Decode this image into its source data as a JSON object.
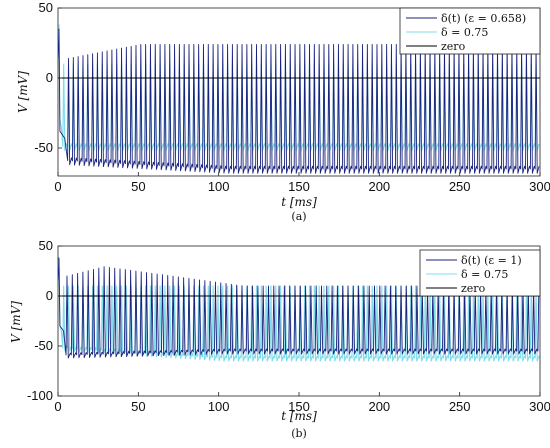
{
  "chart_data": [
    {
      "type": "line",
      "panel": "a",
      "caption": "(a)",
      "xlabel": "t [ms]",
      "ylabel": "V [mV]",
      "xlim": [
        0,
        300
      ],
      "ylim": [
        -70,
        50
      ],
      "xticks": [
        0,
        50,
        100,
        150,
        200,
        250,
        300
      ],
      "yticks": [
        -50,
        0,
        50
      ],
      "legend_position": "top-right",
      "series": [
        {
          "name": "δ(t) (ε = 0.658)",
          "color": "#1a237e",
          "spike_period_ms": 3.0,
          "spike_start_ms": 6,
          "trough_start": -62,
          "trough_end": -68,
          "peak_start": 14,
          "peak_plateau": 24,
          "initial_spike": 35,
          "initial_dip": -38
        },
        {
          "name": "δ = 0.75",
          "color": "#7fdcea",
          "spike_period_ms": 3.0,
          "spike_start_ms": 3,
          "trough_start": -52,
          "trough_end": -52,
          "peak_start": 10,
          "peak_plateau": 10,
          "initial_spike": 38,
          "initial_dip": -30
        },
        {
          "name": "zero",
          "color": "#000000",
          "constant": 0
        }
      ]
    },
    {
      "type": "line",
      "panel": "b",
      "caption": "(b)",
      "xlabel": "t [ms]",
      "ylabel": "V [mV]",
      "xlim": [
        0,
        300
      ],
      "ylim": [
        -100,
        50
      ],
      "xticks": [
        0,
        50,
        100,
        150,
        200,
        250,
        300
      ],
      "yticks": [
        -100,
        -50,
        0,
        50
      ],
      "legend_position": "top-right",
      "series": [
        {
          "name": "δ(t) (ε = 1)",
          "color": "#1a237e",
          "spike_period_ms": 3.3,
          "spike_start_ms": 5,
          "trough_start": -62,
          "trough_end": -58,
          "peak_start": 20,
          "peak_max": 30,
          "peak_end": 10,
          "initial_spike": 38,
          "initial_dip": -30
        },
        {
          "name": "δ = 0.75",
          "color": "#7fdcea",
          "spike_period_ms": 3.0,
          "spike_start_ms": 3,
          "trough_start": -55,
          "trough_end": -65,
          "peak_start": 10,
          "peak_plateau": 10,
          "initial_spike": 38,
          "initial_dip": -30
        },
        {
          "name": "zero",
          "color": "#000000",
          "constant": 0
        }
      ]
    }
  ]
}
